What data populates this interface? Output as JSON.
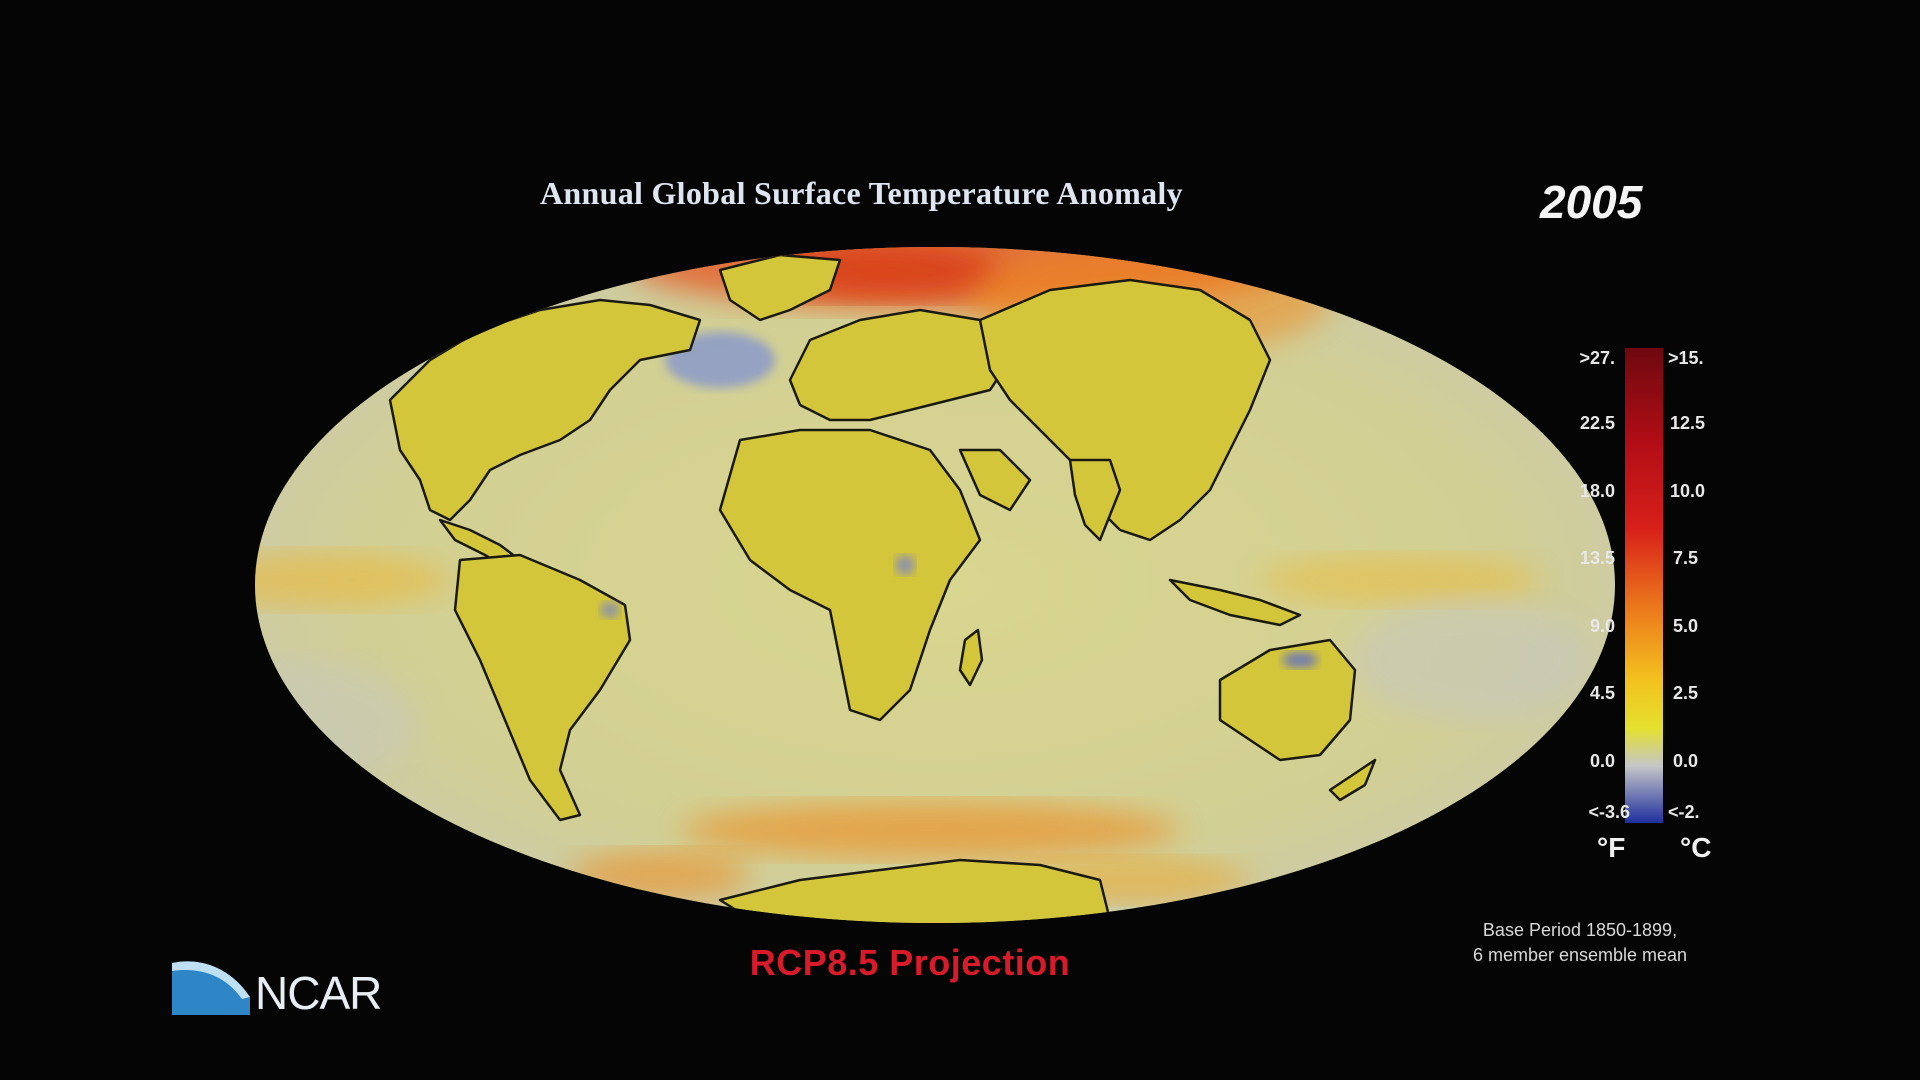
{
  "title": "Annual Global Surface Temperature Anomaly",
  "year": "2005",
  "scenario": "RCP8.5  Projection",
  "base_period": {
    "line1": "Base Period 1850-1899,",
    "line2": "6 member ensemble mean"
  },
  "logo": {
    "text": "NCAR",
    "icon": "ncar-wave-icon"
  },
  "colorbar": {
    "fahrenheit_labels": [
      ">27.",
      "22.5",
      "18.0",
      "13.5",
      "9.0",
      "4.5",
      "0.0",
      "<-3.6"
    ],
    "celsius_labels": [
      ">15.",
      "12.5",
      "10.0",
      "7.5",
      "5.0",
      "2.5",
      "0.0",
      "<-2."
    ],
    "unit_f": "°F",
    "unit_c": "°C",
    "colors": [
      "#7a0a12",
      "#c8101a",
      "#e23a12",
      "#f08a1a",
      "#f6c51e",
      "#e6e02a",
      "#bfc3c8",
      "#2a3aa8"
    ]
  },
  "colors": {
    "ocean_base": "#d8d39a",
    "land": "#d6c83a",
    "warm_arctic": "#e8551c",
    "cool_anomaly": "#8a9acb",
    "projection_text": "#d81b2a"
  }
}
